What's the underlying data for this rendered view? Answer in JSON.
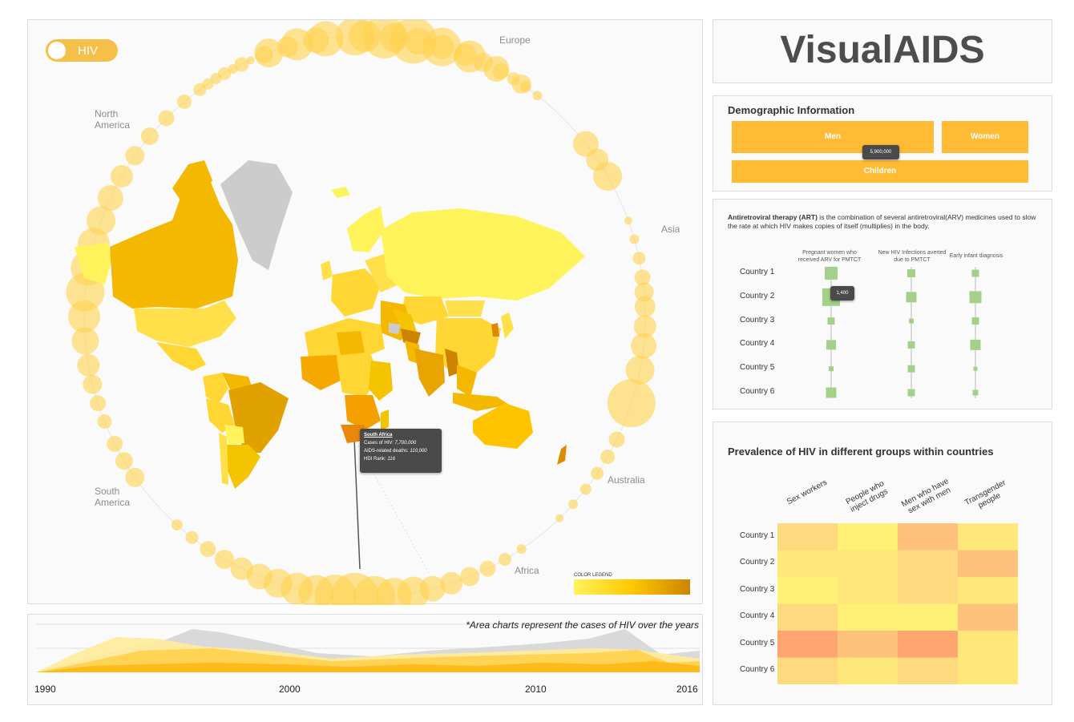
{
  "app_title": "VisualAIDS",
  "toggle": {
    "label": "HIV"
  },
  "map": {
    "regions": [
      "Europe",
      "North America",
      "Asia",
      "South America",
      "Australia",
      "Africa"
    ],
    "tooltip": {
      "country": "South Africa",
      "cases_label": "Cases of HIV:",
      "cases_value": "7,700,000",
      "deaths_label": "AIDS-related deaths:",
      "deaths_value": "110,000",
      "hdi_label": "HDI Rank:",
      "hdi_value": "116"
    },
    "legend": {
      "title": "COLOR LEGEND",
      "color_low": "#fff35c",
      "color_high": "#cc8400"
    },
    "colors": {
      "land_grey": "#cccccc",
      "bubble": "#ffd24d"
    }
  },
  "timeline": {
    "note": "*Area charts represent the cases of HIV over the years",
    "years": [
      "1990",
      "2000",
      "2010",
      "2016"
    ]
  },
  "demographics": {
    "heading": "Demographic Information",
    "men": "Men",
    "women": "Women",
    "children": "Children",
    "tooltip": "5,900,000",
    "color": "#ffbb33"
  },
  "art": {
    "term": "Antiretroviral therapy (ART)",
    "description": " is the combination of several antiretroviral(ARV) medicines used to slow the rate at which HIV makes copies of itself (multiplies) in the body.",
    "columns": [
      "Pregnant women who received ARV for PMTCT",
      "New HIV Infections averted due to PMTCT",
      "Early infant diagnosis"
    ],
    "rows": [
      "Country 1",
      "Country 2",
      "Country 3",
      "Country 4",
      "Country 5",
      "Country 6"
    ],
    "tooltip": "1,400",
    "marker_color": "#a3d189"
  },
  "chart_data": {
    "type": "heatmap",
    "title": "Prevalence of HIV in different groups within countries",
    "columns": [
      "Sex workers",
      "People who inject drugs",
      "Men who have sex with men",
      "Transgender people"
    ],
    "rows": [
      "Country 1",
      "Country 2",
      "Country 3",
      "Country 4",
      "Country 5",
      "Country 6"
    ],
    "values": [
      [
        3,
        1,
        4,
        2
      ],
      [
        2,
        2,
        3,
        4
      ],
      [
        1,
        2,
        3,
        2
      ],
      [
        3,
        1,
        1,
        4
      ],
      [
        5,
        4,
        5,
        2
      ],
      [
        3,
        2,
        3,
        2
      ]
    ],
    "scale": [
      "#fff176",
      "#ffe77a",
      "#ffd980",
      "#ffc27d",
      "#ffa56f"
    ]
  }
}
